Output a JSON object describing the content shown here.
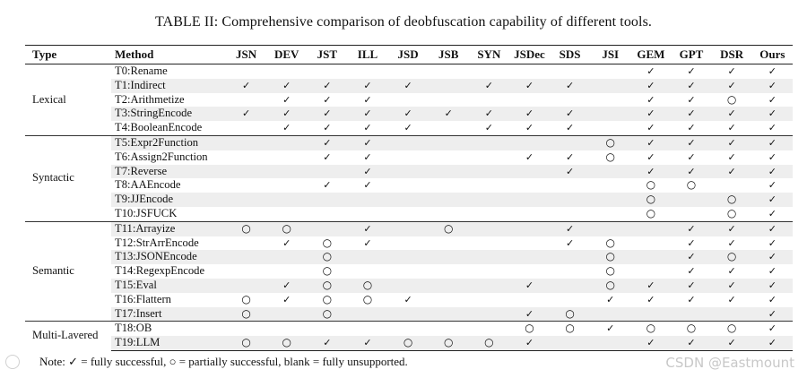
{
  "caption": "TABLE II: Comprehensive comparison of deobfuscation capability of different tools.",
  "table": {
    "type_header": "Type",
    "method_header": "Method",
    "tools": [
      "JSN",
      "DEV",
      "JST",
      "ILL",
      "JSD",
      "JSB",
      "SYN",
      "JSDec",
      "SDS",
      "JSI",
      "GEM",
      "GPT",
      "DSR",
      "Ours"
    ],
    "symbols": {
      "full": "✓",
      "partial": "○"
    },
    "groups": [
      {
        "type": "Lexical",
        "rows": [
          {
            "method": "T0:Rename",
            "marks": [
              "",
              "",
              "",
              "",
              "",
              "",
              "",
              "",
              "",
              "",
              "full",
              "full",
              "full",
              "full"
            ]
          },
          {
            "method": "T1:Indirect",
            "marks": [
              "full",
              "full",
              "full",
              "full",
              "full",
              "",
              "full",
              "full",
              "full",
              "",
              "full",
              "full",
              "full",
              "full"
            ]
          },
          {
            "method": "T2:Arithmetize",
            "marks": [
              "",
              "full",
              "full",
              "full",
              "",
              "",
              "",
              "",
              "",
              "",
              "full",
              "full",
              "partial",
              "full"
            ]
          },
          {
            "method": "T3:StringEncode",
            "marks": [
              "full",
              "full",
              "full",
              "full",
              "full",
              "full",
              "full",
              "full",
              "full",
              "",
              "full",
              "full",
              "full",
              "full"
            ]
          },
          {
            "method": "T4:BooleanEncode",
            "marks": [
              "",
              "full",
              "full",
              "full",
              "full",
              "",
              "full",
              "full",
              "full",
              "",
              "full",
              "full",
              "full",
              "full"
            ]
          }
        ]
      },
      {
        "type": "Syntactic",
        "rows": [
          {
            "method": "T5:Expr2Function",
            "marks": [
              "",
              "",
              "full",
              "full",
              "",
              "",
              "",
              "",
              "",
              "partial",
              "full",
              "full",
              "full",
              "full"
            ]
          },
          {
            "method": "T6:Assign2Function",
            "marks": [
              "",
              "",
              "full",
              "full",
              "",
              "",
              "",
              "full",
              "full",
              "partial",
              "full",
              "full",
              "full",
              "full"
            ]
          },
          {
            "method": "T7:Reverse",
            "marks": [
              "",
              "",
              "",
              "full",
              "",
              "",
              "",
              "",
              "full",
              "",
              "full",
              "full",
              "full",
              "full"
            ]
          },
          {
            "method": "T8:AAEncode",
            "marks": [
              "",
              "",
              "full",
              "full",
              "",
              "",
              "",
              "",
              "",
              "",
              "partial",
              "partial",
              "",
              "full"
            ]
          },
          {
            "method": "T9:JJEncode",
            "marks": [
              "",
              "",
              "",
              "",
              "",
              "",
              "",
              "",
              "",
              "",
              "partial",
              "",
              "partial",
              "full"
            ]
          },
          {
            "method": "T10:JSFUCK",
            "marks": [
              "",
              "",
              "",
              "",
              "",
              "",
              "",
              "",
              "",
              "",
              "partial",
              "",
              "partial",
              "full"
            ]
          }
        ]
      },
      {
        "type": "Semantic",
        "rows": [
          {
            "method": "T11:Arrayize",
            "marks": [
              "partial",
              "partial",
              "",
              "full",
              "",
              "partial",
              "",
              "",
              "full",
              "",
              "",
              "full",
              "full",
              "full"
            ]
          },
          {
            "method": "T12:StrArrEncode",
            "marks": [
              "",
              "full",
              "partial",
              "full",
              "",
              "",
              "",
              "",
              "full",
              "partial",
              "",
              "full",
              "full",
              "full"
            ]
          },
          {
            "method": "T13:JSONEncode",
            "marks": [
              "",
              "",
              "partial",
              "",
              "",
              "",
              "",
              "",
              "",
              "partial",
              "",
              "full",
              "partial",
              "full"
            ]
          },
          {
            "method": "T14:RegexpEncode",
            "marks": [
              "",
              "",
              "partial",
              "",
              "",
              "",
              "",
              "",
              "",
              "partial",
              "",
              "full",
              "full",
              "full"
            ]
          },
          {
            "method": "T15:Eval",
            "marks": [
              "",
              "full",
              "partial",
              "partial",
              "",
              "",
              "",
              "full",
              "",
              "partial",
              "full",
              "full",
              "full",
              "full"
            ]
          },
          {
            "method": "T16:Flattern",
            "marks": [
              "partial",
              "full",
              "partial",
              "partial",
              "full",
              "",
              "",
              "",
              "",
              "full",
              "full",
              "full",
              "full",
              "full"
            ]
          },
          {
            "method": "T17:Insert",
            "marks": [
              "partial",
              "",
              "partial",
              "",
              "",
              "",
              "",
              "full",
              "partial",
              "",
              "",
              "",
              "",
              "full"
            ]
          }
        ]
      },
      {
        "type": "Multi-Lavered",
        "rows": [
          {
            "method": "T18:OB",
            "marks": [
              "",
              "",
              "",
              "",
              "",
              "",
              "",
              "partial",
              "partial",
              "full",
              "partial",
              "partial",
              "partial",
              "full"
            ]
          },
          {
            "method": "T19:LLM",
            "marks": [
              "partial",
              "partial",
              "full",
              "full",
              "partial",
              "partial",
              "partial",
              "full",
              "",
              "",
              "full",
              "full",
              "full",
              "full"
            ]
          }
        ]
      }
    ]
  },
  "note": "Note: ✓ = fully successful, ○ = partially successful, blank = fully unsupported.",
  "watermark": "CSDN @Eastmount"
}
